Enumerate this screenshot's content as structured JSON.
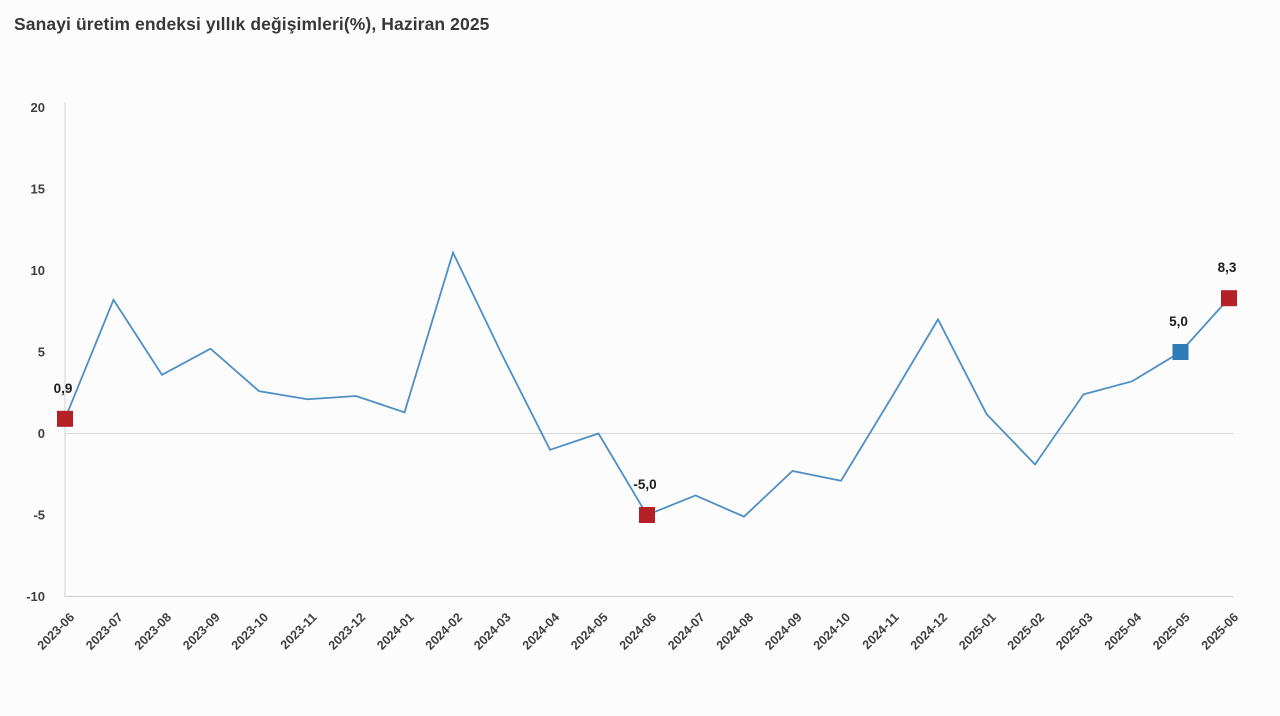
{
  "title": "Sanayi üretim endeksi yıllık değişimleri(%), Haziran 2025",
  "colors": {
    "line": "#4e8fc5",
    "marker_red": "#b42025",
    "marker_blue": "#2e7cb5",
    "axis": "#cfcfcf",
    "zero_line": "#d9d9d9",
    "tick_text": "#3f3f3f",
    "title_text": "#383838",
    "background": "#fcfcfc"
  },
  "chart_data": {
    "type": "line",
    "title": "Sanayi üretim endeksi yıllık değişimleri(%), Haziran 2025",
    "xlabel": "",
    "ylabel": "",
    "ylim": [
      -10,
      20
    ],
    "yticks": [
      20,
      15,
      10,
      5,
      0,
      -5,
      -10
    ],
    "grid": "zero-line-only",
    "legend": "none",
    "x": [
      "2023-06",
      "2023-07",
      "2023-08",
      "2023-09",
      "2023-10",
      "2023-11",
      "2023-12",
      "2024-01",
      "2024-02",
      "2024-03",
      "2024-04",
      "2024-05",
      "2024-06",
      "2024-07",
      "2024-08",
      "2024-09",
      "2024-10",
      "2024-11",
      "2024-12",
      "2025-01",
      "2025-02",
      "2025-03",
      "2025-04",
      "2025-05",
      "2025-06"
    ],
    "values": [
      0.9,
      8.2,
      3.6,
      5.2,
      2.6,
      2.1,
      2.3,
      1.3,
      11.1,
      4.9,
      -1.0,
      0.0,
      -5.0,
      -3.8,
      -5.1,
      -2.3,
      -2.9,
      2.0,
      7.0,
      1.2,
      -1.9,
      2.4,
      3.2,
      5.0,
      8.3
    ],
    "labeled_points": [
      {
        "x": "2023-06",
        "value": 0.9,
        "label": "0,9",
        "marker": "square",
        "marker_color": "#b42025"
      },
      {
        "x": "2024-06",
        "value": -5.0,
        "label": "-5,0",
        "marker": "square",
        "marker_color": "#b42025"
      },
      {
        "x": "2025-05",
        "value": 5.0,
        "label": "5,0",
        "marker": "square",
        "marker_color": "#2e7cb5"
      },
      {
        "x": "2025-06",
        "value": 8.3,
        "label": "8,3",
        "marker": "square",
        "marker_color": "#b42025"
      }
    ]
  }
}
